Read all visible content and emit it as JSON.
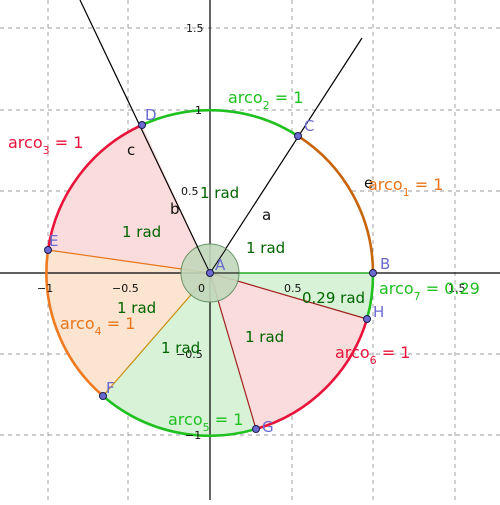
{
  "axes": {
    "x_ticks": [
      "−1",
      "−0.5",
      "0.5",
      "1.5"
    ],
    "y_ticks": [
      "1.5",
      "1",
      "0.5",
      "−0.5",
      "−1"
    ],
    "origin": "0"
  },
  "points": [
    {
      "label": "A",
      "x": 0,
      "y": 0
    },
    {
      "label": "B",
      "x": 1,
      "y": 0
    },
    {
      "label": "C",
      "x": 0.5403,
      "y": 0.8415
    },
    {
      "label": "D",
      "x": -0.4161,
      "y": 0.9093
    },
    {
      "label": "E",
      "x": -0.99,
      "y": 0.1411
    },
    {
      "label": "F",
      "x": -0.6536,
      "y": -0.7568
    },
    {
      "label": "G",
      "x": 0.2837,
      "y": -0.9589
    },
    {
      "label": "H",
      "x": 0.9602,
      "y": -0.2794
    }
  ],
  "segments": [
    {
      "label": "a",
      "name": "segment-a"
    },
    {
      "label": "b",
      "name": "segment-b"
    },
    {
      "label": "c",
      "name": "segment-c"
    },
    {
      "label": "e",
      "name": "segment-e"
    }
  ],
  "arcs": [
    {
      "main": "arco",
      "sub": "1",
      "value": " = 1",
      "color": "#e8751a"
    },
    {
      "main": "arco",
      "sub": "2",
      "value": " = 1",
      "color": "#20c020"
    },
    {
      "main": "arco",
      "sub": "3",
      "value": " = 1",
      "color": "#e8143c"
    },
    {
      "main": "arco",
      "sub": "4",
      "value": " = 1",
      "color": "#e8751a"
    },
    {
      "main": "arco",
      "sub": "5",
      "value": " = 1",
      "color": "#20c020"
    },
    {
      "main": "arco",
      "sub": "6",
      "value": " = 1",
      "color": "#e8143c"
    },
    {
      "main": "arco",
      "sub": "7",
      "value": " = 0.29",
      "color": "#20c020"
    }
  ],
  "sector_labels": [
    "1 rad",
    "1 rad",
    "1 rad",
    "1 rad",
    "1 rad",
    "1 rad",
    "0.29 rad"
  ],
  "colors": {
    "orange": "#c8640a",
    "green": "#20c020",
    "red": "#e8143c",
    "orange_bright": "#f07a20",
    "point_fill": "#6a6ad0",
    "sector_green": "#d8f2d8",
    "sector_pink": "#fadcdc",
    "sector_orange": "#fbe4d0",
    "angle_fill": "#c2d8bc"
  }
}
